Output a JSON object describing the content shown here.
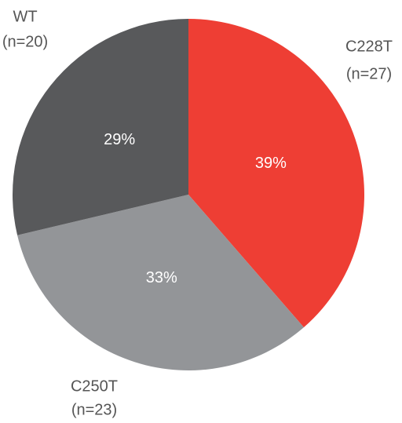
{
  "chart_data": {
    "type": "pie",
    "categories": [
      "C228T",
      "C250T",
      "WT"
    ],
    "category_sublabels": [
      "(n=27)",
      "(n=23)",
      "(n=20)"
    ],
    "values": [
      39,
      33,
      29
    ],
    "value_labels": [
      "39%",
      "33%",
      "29%"
    ],
    "colors": [
      "#ee3e34",
      "#939598",
      "#58595b"
    ]
  }
}
